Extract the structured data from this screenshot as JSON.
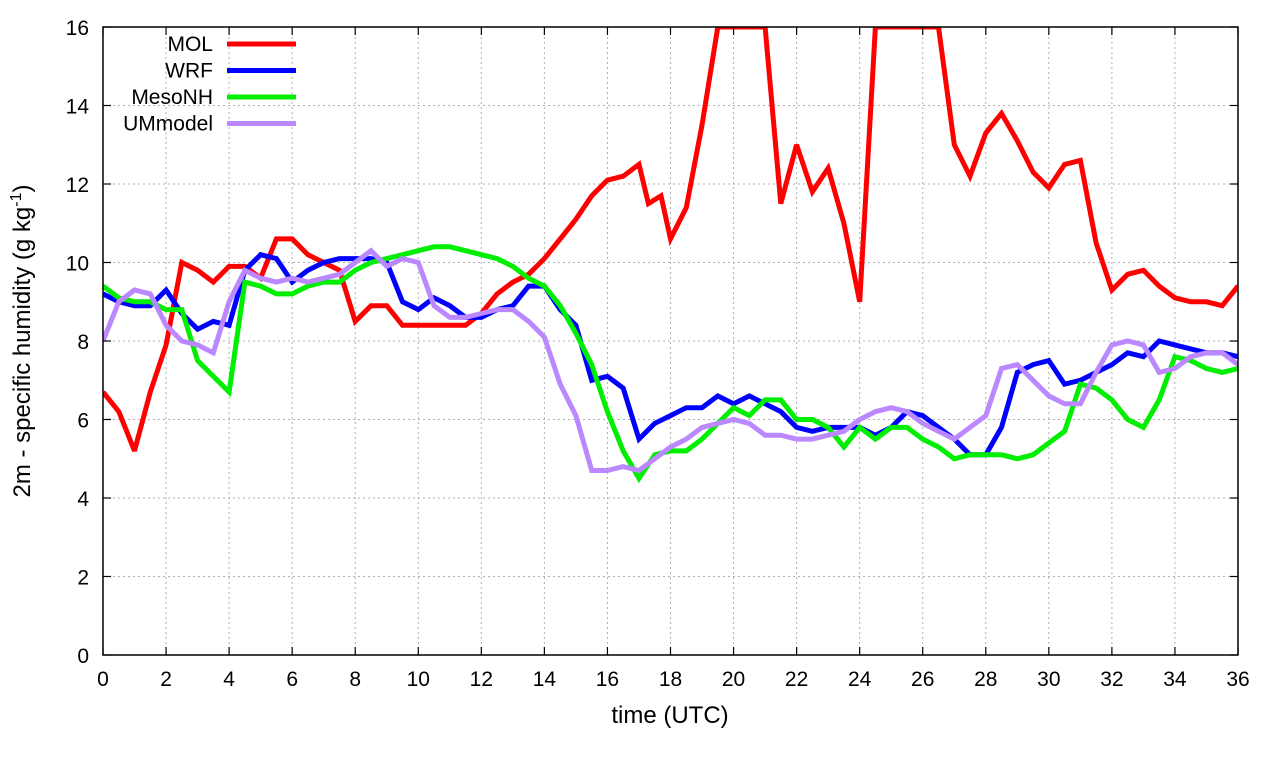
{
  "chart_data": {
    "type": "line",
    "xlabel": "time (UTC)",
    "ylabel": {
      "main": "2m - specific humidity (g kg",
      "superscript": "-1",
      "suffix": ")"
    },
    "xlim": [
      0,
      36
    ],
    "ylim": [
      0,
      16
    ],
    "xticks": [
      "0",
      "2",
      "4",
      "6",
      "8",
      "10",
      "12",
      "14",
      "16",
      "18",
      "20",
      "22",
      "24",
      "26",
      "28",
      "30",
      "32",
      "34",
      "36"
    ],
    "yticks": [
      "0",
      "2",
      "4",
      "6",
      "8",
      "10",
      "12",
      "14",
      "16"
    ],
    "grid": true,
    "legend_position": "top-left",
    "series": [
      {
        "name": "MOL",
        "color": "#ff0000",
        "x": [
          0,
          0.5,
          1,
          1.5,
          2,
          2.5,
          3,
          3.5,
          4,
          4.5,
          5,
          5.5,
          6,
          6.5,
          7,
          7.5,
          8,
          8.5,
          9,
          9.5,
          10,
          10.5,
          11,
          11.5,
          12,
          12.5,
          13,
          13.5,
          14,
          14.5,
          15,
          15.5,
          16,
          16.5,
          17,
          17.3,
          17.7,
          18,
          18.5,
          19,
          19.5,
          20,
          20.3,
          20.6,
          21,
          21.5,
          22,
          22.5,
          23,
          23.5,
          24,
          24.5,
          25,
          25.5,
          26,
          26.5,
          27,
          27.5,
          28,
          28.5,
          29,
          29.5,
          30,
          30.5,
          31,
          31.5,
          32,
          32.5,
          33,
          33.5,
          34,
          34.5,
          35,
          35.5,
          36
        ],
        "y": [
          6.7,
          6.2,
          5.2,
          6.7,
          7.9,
          10.0,
          9.8,
          9.5,
          9.9,
          9.9,
          9.6,
          10.6,
          10.6,
          10.2,
          10.0,
          9.8,
          8.5,
          8.9,
          8.9,
          8.4,
          8.4,
          8.4,
          8.4,
          8.4,
          8.7,
          9.2,
          9.5,
          9.7,
          10.1,
          10.6,
          11.1,
          11.7,
          12.1,
          12.2,
          12.5,
          11.5,
          11.7,
          10.6,
          11.4,
          13.5,
          16,
          16,
          16,
          16,
          16,
          11.5,
          13.0,
          11.8,
          12.4,
          11.0,
          9.0,
          16,
          16,
          16,
          16,
          16,
          13.0,
          12.2,
          13.3,
          13.8,
          13.1,
          12.3,
          11.9,
          12.5,
          12.6,
          10.5,
          9.3,
          9.7,
          9.8,
          9.4,
          9.1,
          9.0,
          9.0,
          8.9,
          9.4
        ]
      },
      {
        "name": "WRF",
        "color": "#0000ff",
        "x": [
          0,
          0.5,
          1,
          1.5,
          2,
          2.5,
          3,
          3.5,
          4,
          4.5,
          5,
          5.5,
          6,
          6.5,
          7,
          7.5,
          8,
          8.5,
          9,
          9.5,
          10,
          10.5,
          11,
          11.5,
          12,
          12.5,
          13,
          13.5,
          14,
          14.5,
          15,
          15.5,
          16,
          16.5,
          17,
          17.5,
          18,
          18.5,
          19,
          19.5,
          20,
          20.5,
          21,
          21.5,
          22,
          22.5,
          23,
          23.5,
          24,
          24.5,
          25,
          25.5,
          26,
          26.5,
          27,
          27.5,
          28,
          28.5,
          29,
          29.5,
          30,
          30.5,
          31,
          31.5,
          32,
          32.5,
          33,
          33.5,
          34,
          34.5,
          35,
          35.5,
          36
        ],
        "y": [
          9.2,
          9.0,
          8.9,
          8.9,
          9.3,
          8.7,
          8.3,
          8.5,
          8.4,
          9.8,
          10.2,
          10.1,
          9.5,
          9.8,
          10.0,
          10.1,
          10.1,
          10.1,
          10.0,
          9.0,
          8.8,
          9.1,
          8.9,
          8.6,
          8.6,
          8.8,
          8.9,
          9.4,
          9.4,
          8.8,
          8.4,
          7.0,
          7.1,
          6.8,
          5.5,
          5.9,
          6.1,
          6.3,
          6.3,
          6.6,
          6.4,
          6.6,
          6.4,
          6.2,
          5.8,
          5.7,
          5.8,
          5.8,
          5.8,
          5.6,
          5.8,
          6.2,
          6.1,
          5.8,
          5.5,
          5.1,
          5.1,
          5.8,
          7.2,
          7.4,
          7.5,
          6.9,
          7.0,
          7.2,
          7.4,
          7.7,
          7.6,
          8.0,
          7.9,
          7.8,
          7.7,
          7.7,
          7.6
        ]
      },
      {
        "name": "MesoNH",
        "color": "#00ee00",
        "x": [
          0,
          0.5,
          1,
          1.5,
          2,
          2.5,
          3,
          3.5,
          4,
          4.5,
          5,
          5.5,
          6,
          6.5,
          7,
          7.5,
          8,
          8.5,
          9,
          9.5,
          10,
          10.5,
          11,
          11.5,
          12,
          12.5,
          13,
          13.5,
          14,
          14.5,
          15,
          15.5,
          16,
          16.5,
          17,
          17.5,
          18,
          18.5,
          19,
          19.5,
          20,
          20.5,
          21,
          21.5,
          22,
          22.5,
          23,
          23.5,
          24,
          24.5,
          25,
          25.5,
          26,
          26.5,
          27,
          27.5,
          28,
          28.5,
          29,
          29.5,
          30,
          30.5,
          31,
          31.5,
          32,
          32.5,
          33,
          33.5,
          34,
          34.5,
          35,
          35.5,
          36
        ],
        "y": [
          9.4,
          9.1,
          9.0,
          9.0,
          8.8,
          8.8,
          7.5,
          7.1,
          6.7,
          9.5,
          9.4,
          9.2,
          9.2,
          9.4,
          9.5,
          9.5,
          9.8,
          10.0,
          10.1,
          10.2,
          10.3,
          10.4,
          10.4,
          10.3,
          10.2,
          10.1,
          9.9,
          9.6,
          9.4,
          8.9,
          8.2,
          7.4,
          6.2,
          5.2,
          4.5,
          5.1,
          5.2,
          5.2,
          5.5,
          5.9,
          6.3,
          6.1,
          6.5,
          6.5,
          6.0,
          6.0,
          5.8,
          5.3,
          5.8,
          5.5,
          5.8,
          5.8,
          5.5,
          5.3,
          5.0,
          5.1,
          5.1,
          5.1,
          5.0,
          5.1,
          5.4,
          5.7,
          6.9,
          6.8,
          6.5,
          6.0,
          5.8,
          6.5,
          7.6,
          7.5,
          7.3,
          7.2,
          7.3
        ]
      },
      {
        "name": "UMmodel",
        "color": "#bb88ff",
        "x": [
          0,
          0.5,
          1,
          1.5,
          2,
          2.5,
          3,
          3.5,
          4,
          4.5,
          5,
          5.5,
          6,
          6.5,
          7,
          7.5,
          8,
          8.5,
          9,
          9.5,
          10,
          10.5,
          11,
          11.5,
          12,
          12.5,
          13,
          13.5,
          14,
          14.5,
          15,
          15.5,
          16,
          16.5,
          17,
          17.5,
          18,
          18.5,
          19,
          19.5,
          20,
          20.5,
          21,
          21.5,
          22,
          22.5,
          23,
          23.5,
          24,
          24.5,
          25,
          25.5,
          26,
          26.5,
          27,
          27.5,
          28,
          28.5,
          29,
          29.5,
          30,
          30.5,
          31,
          31.5,
          32,
          32.5,
          33,
          33.5,
          34,
          34.5,
          35,
          35.5,
          36
        ],
        "y": [
          8.0,
          9.0,
          9.3,
          9.2,
          8.4,
          8.0,
          7.9,
          7.7,
          9.0,
          9.8,
          9.6,
          9.5,
          9.6,
          9.5,
          9.6,
          9.7,
          10.0,
          10.3,
          9.9,
          10.1,
          10.0,
          8.9,
          8.6,
          8.6,
          8.7,
          8.8,
          8.8,
          8.5,
          8.1,
          6.9,
          6.1,
          4.7,
          4.7,
          4.8,
          4.7,
          5.0,
          5.3,
          5.5,
          5.8,
          5.9,
          6.0,
          5.9,
          5.6,
          5.6,
          5.5,
          5.5,
          5.6,
          5.7,
          6.0,
          6.2,
          6.3,
          6.2,
          5.9,
          5.7,
          5.5,
          5.8,
          6.1,
          7.3,
          7.4,
          7.0,
          6.6,
          6.4,
          6.4,
          7.2,
          7.9,
          8.0,
          7.9,
          7.2,
          7.3,
          7.6,
          7.7,
          7.7,
          7.4
        ]
      }
    ]
  }
}
